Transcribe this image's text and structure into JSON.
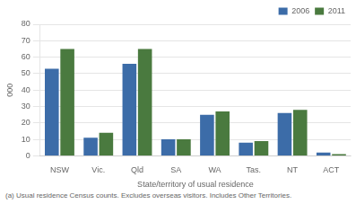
{
  "chart_data": {
    "type": "bar",
    "categories": [
      "NSW",
      "Vic.",
      "Qld",
      "SA",
      "WA",
      "Tas.",
      "NT",
      "ACT"
    ],
    "series": [
      {
        "name": "2006",
        "color": "#3c6ca8",
        "values": [
          53,
          11,
          56,
          10,
          25,
          8,
          26,
          2
        ]
      },
      {
        "name": "2011",
        "color": "#4a7a3f",
        "values": [
          65,
          14,
          65,
          10,
          27,
          9,
          28,
          1
        ]
      }
    ],
    "xlabel": "State/territory of usual residence",
    "ylabel": "000",
    "ylim": [
      0,
      80
    ],
    "yticks": [
      0,
      10,
      20,
      30,
      40,
      50,
      60,
      70,
      80
    ],
    "grid": true,
    "legend": "upper right",
    "annotations": [
      "(a) Usual residence Census counts.  Excludes overseas visitors.  Includes Other Territories."
    ]
  }
}
